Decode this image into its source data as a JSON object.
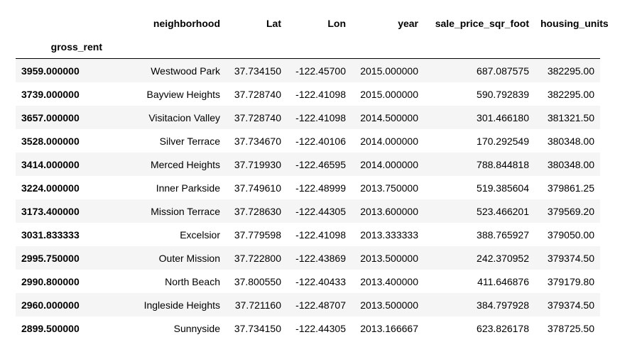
{
  "table": {
    "index_name": "gross_rent",
    "columns": [
      "neighborhood",
      "Lat",
      "Lon",
      "year",
      "sale_price_sqr_foot",
      "housing_units"
    ],
    "rows": [
      {
        "index": "3959.000000",
        "cells": [
          "Westwood Park",
          "37.734150",
          "-122.45700",
          "2015.000000",
          "687.087575",
          "382295.00"
        ]
      },
      {
        "index": "3739.000000",
        "cells": [
          "Bayview Heights",
          "37.728740",
          "-122.41098",
          "2015.000000",
          "590.792839",
          "382295.00"
        ]
      },
      {
        "index": "3657.000000",
        "cells": [
          "Visitacion Valley",
          "37.728740",
          "-122.41098",
          "2014.500000",
          "301.466180",
          "381321.50"
        ]
      },
      {
        "index": "3528.000000",
        "cells": [
          "Silver Terrace",
          "37.734670",
          "-122.40106",
          "2014.000000",
          "170.292549",
          "380348.00"
        ]
      },
      {
        "index": "3414.000000",
        "cells": [
          "Merced Heights",
          "37.719930",
          "-122.46595",
          "2014.000000",
          "788.844818",
          "380348.00"
        ]
      },
      {
        "index": "3224.000000",
        "cells": [
          "Inner Parkside",
          "37.749610",
          "-122.48999",
          "2013.750000",
          "519.385604",
          "379861.25"
        ]
      },
      {
        "index": "3173.400000",
        "cells": [
          "Mission Terrace",
          "37.728630",
          "-122.44305",
          "2013.600000",
          "523.466201",
          "379569.20"
        ]
      },
      {
        "index": "3031.833333",
        "cells": [
          "Excelsior",
          "37.779598",
          "-122.41098",
          "2013.333333",
          "388.765927",
          "379050.00"
        ]
      },
      {
        "index": "2995.750000",
        "cells": [
          "Outer Mission",
          "37.722800",
          "-122.43869",
          "2013.500000",
          "242.370952",
          "379374.50"
        ]
      },
      {
        "index": "2990.800000",
        "cells": [
          "North Beach",
          "37.800550",
          "-122.40433",
          "2013.400000",
          "411.646876",
          "379179.80"
        ]
      },
      {
        "index": "2960.000000",
        "cells": [
          "Ingleside Heights",
          "37.721160",
          "-122.48707",
          "2013.500000",
          "384.797928",
          "379374.50"
        ]
      },
      {
        "index": "2899.500000",
        "cells": [
          "Sunnyside",
          "37.734150",
          "-122.44305",
          "2013.166667",
          "623.826178",
          "378725.50"
        ]
      }
    ]
  }
}
